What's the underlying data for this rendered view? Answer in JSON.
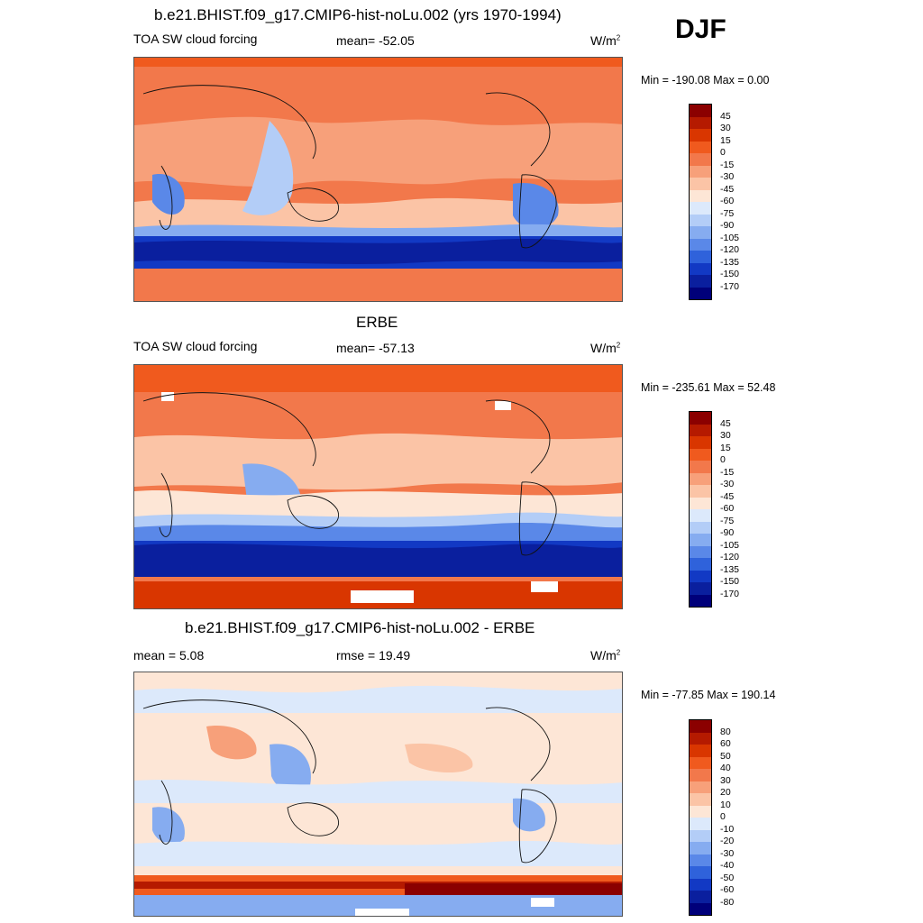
{
  "season": "DJF",
  "panels": [
    {
      "title": "b.e21.BHIST.f09_g17.CMIP6-hist-noLu.002 (yrs 1970-1994)",
      "left_label": "TOA SW cloud forcing",
      "center_label": "mean= -52.05",
      "units_base": "W/m",
      "units_exp": "2",
      "minmax": "Min = -190.08 Max =   0.00"
    },
    {
      "title": "ERBE",
      "left_label": "TOA SW cloud forcing",
      "center_label": "mean= -57.13",
      "units_base": "W/m",
      "units_exp": "2",
      "minmax": "Min = -235.61 Max =  52.48"
    },
    {
      "title": "b.e21.BHIST.f09_g17.CMIP6-hist-noLu.002 - ERBE",
      "left_label": "mean =   5.08",
      "center_label": "rmse =  19.49",
      "units_base": "W/m",
      "units_exp": "2",
      "minmax": "Min = -77.85 Max = 190.14"
    }
  ],
  "chart_data": [
    {
      "type": "heatmap",
      "title": "b.e21.BHIST.f09_g17.CMIP6-hist-noLu.002 (yrs 1970-1994)",
      "variable": "TOA SW cloud forcing",
      "units": "W/m2",
      "mean": -52.05,
      "min": -190.08,
      "max": 0.0,
      "colorbar_levels": [
        45,
        30,
        15,
        0,
        -15,
        -30,
        -45,
        -60,
        -75,
        -90,
        -105,
        -120,
        -135,
        -150,
        -170
      ]
    },
    {
      "type": "heatmap",
      "title": "ERBE",
      "variable": "TOA SW cloud forcing",
      "units": "W/m2",
      "mean": -57.13,
      "min": -235.61,
      "max": 52.48,
      "colorbar_levels": [
        45,
        30,
        15,
        0,
        -15,
        -30,
        -45,
        -60,
        -75,
        -90,
        -105,
        -120,
        -135,
        -150,
        -170
      ]
    },
    {
      "type": "heatmap",
      "title": "b.e21.BHIST.f09_g17.CMIP6-hist-noLu.002 - ERBE",
      "units": "W/m2",
      "mean": 5.08,
      "rmse": 19.49,
      "min": -77.85,
      "max": 190.14,
      "colorbar_levels": [
        80,
        60,
        50,
        40,
        30,
        20,
        10,
        0,
        -10,
        -20,
        -30,
        -40,
        -50,
        -60,
        -80
      ]
    }
  ],
  "colorbar_colors": [
    "#8b0000",
    "#b51a00",
    "#d93600",
    "#f05a1e",
    "#f2784b",
    "#f7a07a",
    "#fbc4a6",
    "#fde6d6",
    "#dce9fb",
    "#b3cdf7",
    "#86acf0",
    "#5a88e8",
    "#2f62db",
    "#1239c4",
    "#0a1f9e",
    "#00007a"
  ]
}
